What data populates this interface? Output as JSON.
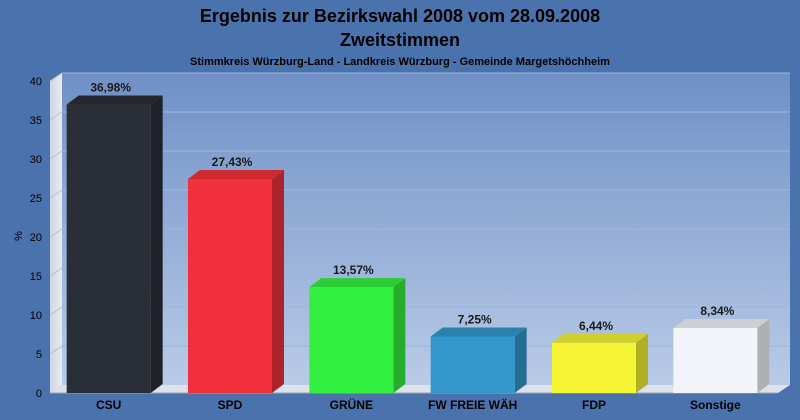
{
  "chart_data": {
    "type": "bar",
    "title": "Ergebnis zur Bezirkswahl 2008 vom 28.09.2008",
    "title_line2": "Zweitstimmen",
    "subtitle": "Stimmkreis Würzburg-Land - Landkreis Würzburg - Gemeinde Margetshöchheim",
    "ylabel": "%",
    "xlabel": "",
    "ylim": [
      0,
      40
    ],
    "yticks": [
      0,
      5,
      10,
      15,
      20,
      25,
      30,
      35,
      40
    ],
    "grid": true,
    "categories": [
      "CSU",
      "SPD",
      "GRÜNE",
      "FW FREIE WÄH",
      "FDP",
      "Sonstige"
    ],
    "values": [
      36.98,
      27.43,
      13.57,
      7.25,
      6.44,
      8.34
    ],
    "value_labels": [
      "36,98%",
      "27,43%",
      "13,57%",
      "7,25%",
      "6,44%",
      "8,34%"
    ],
    "colors": [
      "#2a2e36",
      "#f0303a",
      "#33f040",
      "#3399cc",
      "#f5f535",
      "#f2f4fa"
    ],
    "background_color": "#4a72ad"
  }
}
